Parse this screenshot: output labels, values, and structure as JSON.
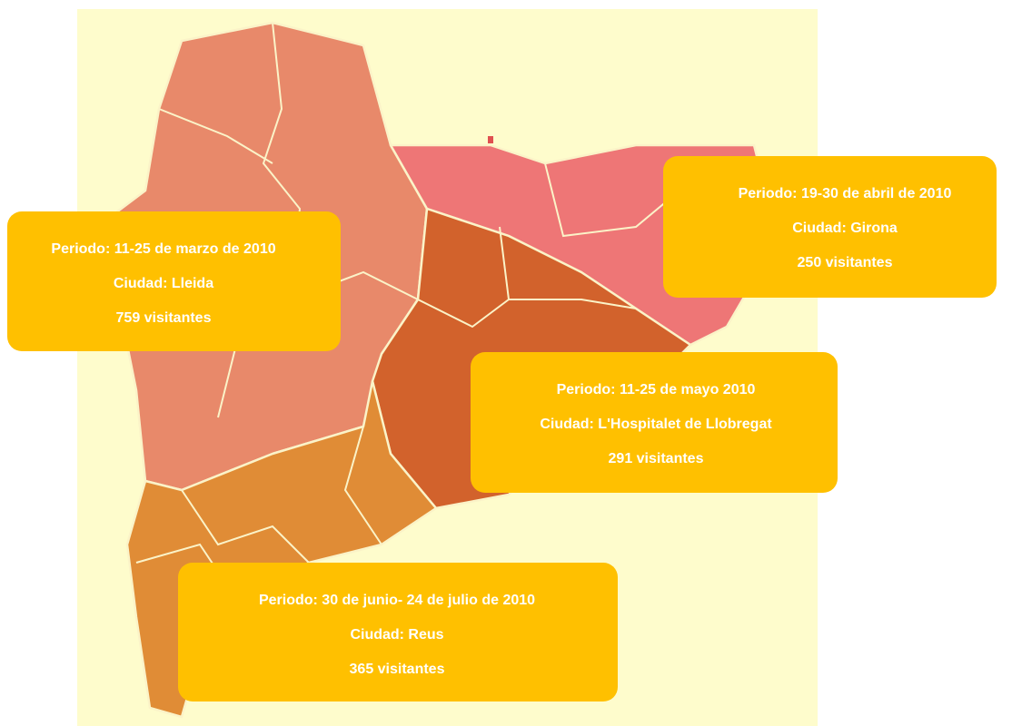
{
  "callouts": [
    {
      "periodo": "Periodo: 11-25 de marzo de 2010",
      "ciudad": "Ciudad: Lleida",
      "visitantes": "759 visitantes"
    },
    {
      "periodo": "Periodo: 19-30 de abril de 2010",
      "ciudad": "Ciudad: Girona",
      "visitantes": "250 visitantes"
    },
    {
      "periodo": "Periodo: 11-25 de mayo 2010",
      "ciudad": "Ciudad: L'Hospitalet de Llobregat",
      "visitantes": "291 visitantes"
    },
    {
      "periodo": "Periodo: 30 de junio- 24 de julio de 2010",
      "ciudad": "Ciudad: Reus",
      "visitantes": "365 visitantes"
    }
  ]
}
